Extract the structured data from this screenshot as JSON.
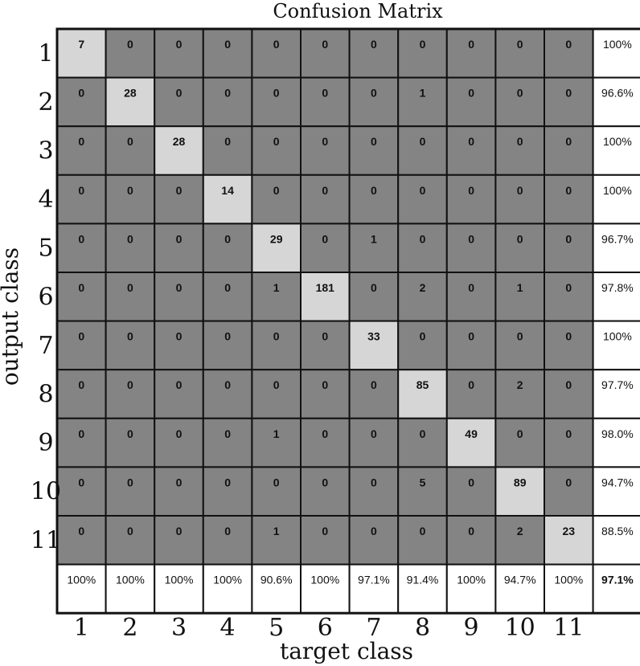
{
  "chart_data": {
    "type": "heatmap",
    "title": "Confusion Matrix",
    "xlabel": "target class",
    "ylabel": "output class",
    "x_categories": [
      "1",
      "2",
      "3",
      "4",
      "5",
      "6",
      "7",
      "8",
      "9",
      "10",
      "11"
    ],
    "y_categories": [
      "1",
      "2",
      "3",
      "4",
      "5",
      "6",
      "7",
      "8",
      "9",
      "10",
      "11"
    ],
    "matrix": [
      [
        7,
        0,
        0,
        0,
        0,
        0,
        0,
        0,
        0,
        0,
        0
      ],
      [
        0,
        28,
        0,
        0,
        0,
        0,
        0,
        1,
        0,
        0,
        0
      ],
      [
        0,
        0,
        28,
        0,
        0,
        0,
        0,
        0,
        0,
        0,
        0
      ],
      [
        0,
        0,
        0,
        14,
        0,
        0,
        0,
        0,
        0,
        0,
        0
      ],
      [
        0,
        0,
        0,
        0,
        29,
        0,
        1,
        0,
        0,
        0,
        0
      ],
      [
        0,
        0,
        0,
        0,
        1,
        181,
        0,
        2,
        0,
        1,
        0
      ],
      [
        0,
        0,
        0,
        0,
        0,
        0,
        33,
        0,
        0,
        0,
        0
      ],
      [
        0,
        0,
        0,
        0,
        0,
        0,
        0,
        85,
        0,
        2,
        0
      ],
      [
        0,
        0,
        0,
        0,
        1,
        0,
        0,
        0,
        49,
        0,
        0
      ],
      [
        0,
        0,
        0,
        0,
        0,
        0,
        0,
        5,
        0,
        89,
        0
      ],
      [
        0,
        0,
        0,
        0,
        1,
        0,
        0,
        0,
        0,
        2,
        23
      ]
    ],
    "row_summary": [
      "100%",
      "96.6%",
      "100%",
      "100%",
      "96.7%",
      "97.8%",
      "100%",
      "97.7%",
      "98.0%",
      "94.7%",
      "88.5%"
    ],
    "column_summary": [
      "100%",
      "100%",
      "100%",
      "100%",
      "90.6%",
      "100%",
      "97.1%",
      "91.4%",
      "100%",
      "94.7%",
      "100%"
    ],
    "overall_accuracy": "97.1%",
    "colors": {
      "diagonal": "#d6d6d6",
      "off_diagonal": "#848484",
      "summary": "#ffffff",
      "grid": "#111111"
    }
  }
}
